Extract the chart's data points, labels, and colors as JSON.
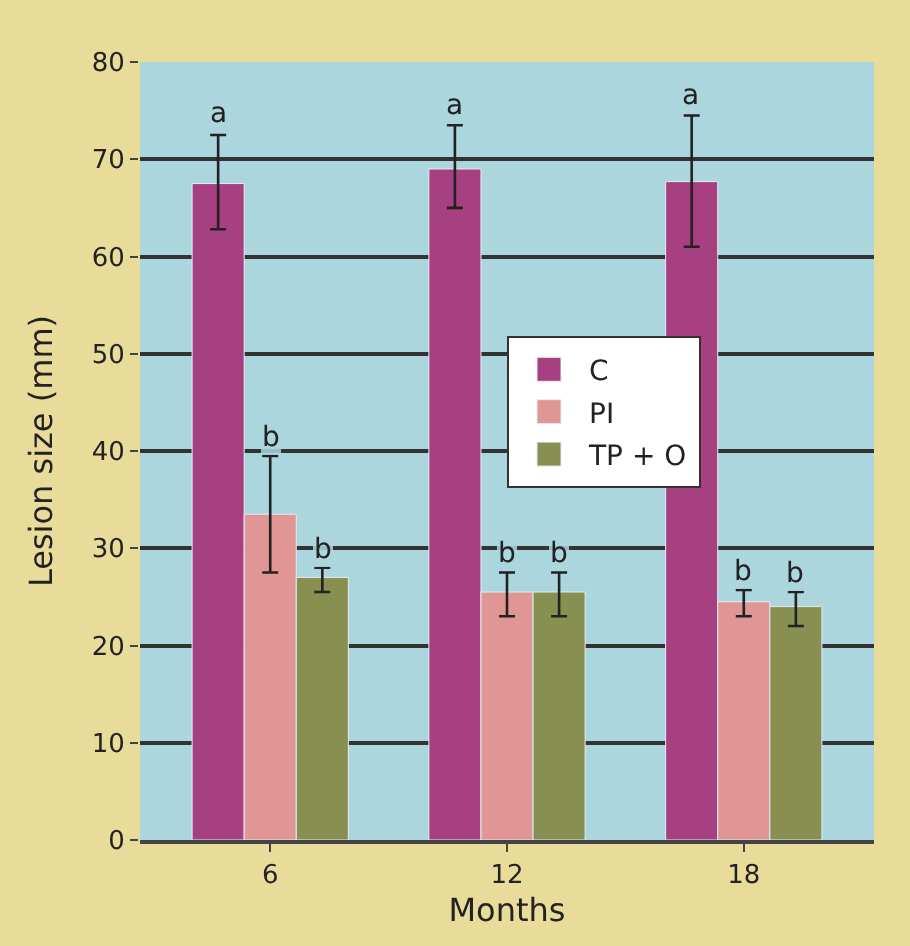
{
  "chart_data": {
    "type": "bar",
    "xlabel": "Months",
    "ylabel": "Lesion size (mm)",
    "categories": [
      "6",
      "12",
      "18"
    ],
    "series": [
      {
        "name": "C",
        "color": "#a64080",
        "values": [
          67.5,
          69,
          67.7
        ],
        "errors": [
          [
            62.8,
            72.5
          ],
          [
            65,
            73.5
          ],
          [
            61,
            74.5
          ]
        ]
      },
      {
        "name": "PI",
        "color": "#df9694",
        "values": [
          33.5,
          25.5,
          24.5
        ],
        "errors": [
          [
            27.5,
            39.5
          ],
          [
            23,
            27.5
          ],
          [
            23,
            25.7
          ]
        ]
      },
      {
        "name": "TP + O",
        "color": "#879050",
        "values": [
          27,
          25.5,
          24
        ],
        "errors": [
          [
            25.5,
            28
          ],
          [
            23,
            27.5
          ],
          [
            22,
            25.5
          ]
        ]
      }
    ],
    "ylim": [
      0,
      80
    ],
    "yticks": [
      0,
      10,
      20,
      30,
      40,
      50,
      60,
      70,
      80
    ],
    "grid": "y",
    "legend": "center",
    "annotations": [
      "a",
      "a",
      "a",
      {
        "text": "b",
        "x": "6",
        "y": 39.5
      },
      {
        "text": "b",
        "x": "6",
        "y": 28
      },
      {
        "text": "b",
        "x": "12",
        "y": 27.5
      },
      {
        "text": "b",
        "x": "12",
        "y": 27.5
      },
      {
        "text": "b",
        "x": "18",
        "y": 25.7
      },
      {
        "text": "b",
        "x": "18",
        "y": 25.5
      }
    ]
  }
}
